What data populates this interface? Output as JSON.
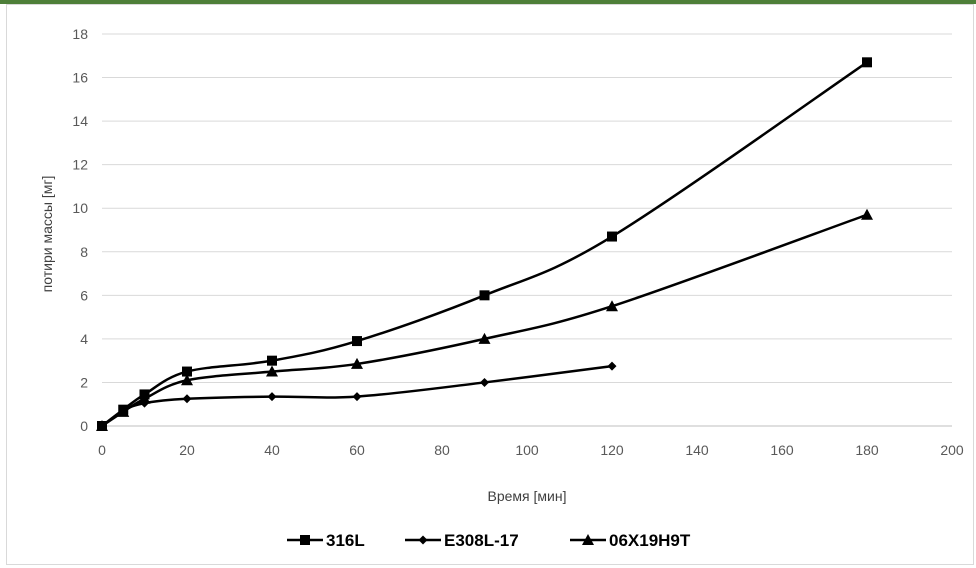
{
  "chart_data": {
    "type": "line",
    "title": "",
    "xlabel": "Время [мин]",
    "ylabel": "потири массы [мг]",
    "xlim": [
      0,
      200
    ],
    "ylim": [
      0,
      18
    ],
    "xticks": [
      0,
      20,
      40,
      60,
      80,
      100,
      120,
      140,
      160,
      180,
      200
    ],
    "yticks": [
      0,
      2,
      4,
      6,
      8,
      10,
      12,
      14,
      16,
      18
    ],
    "grid": "horizontal",
    "legend_position": "bottom",
    "series": [
      {
        "name": "316L",
        "marker": "square",
        "color": "#000000",
        "x": [
          0,
          5,
          10,
          20,
          40,
          60,
          90,
          120,
          180
        ],
        "y": [
          0,
          0.75,
          1.45,
          2.5,
          3.0,
          3.9,
          6.0,
          8.7,
          16.7
        ]
      },
      {
        "name": "E308L-17",
        "marker": "diamond",
        "color": "#000000",
        "x": [
          0,
          5,
          10,
          20,
          40,
          60,
          90,
          120
        ],
        "y": [
          0,
          0.7,
          1.05,
          1.25,
          1.35,
          1.35,
          2.0,
          2.75
        ]
      },
      {
        "name": "06X19H9T",
        "marker": "triangle",
        "color": "#000000",
        "x": [
          0,
          5,
          10,
          20,
          40,
          60,
          90,
          120,
          180
        ],
        "y": [
          0,
          0.65,
          1.25,
          2.1,
          2.5,
          2.85,
          4.0,
          5.5,
          9.7
        ]
      }
    ]
  }
}
